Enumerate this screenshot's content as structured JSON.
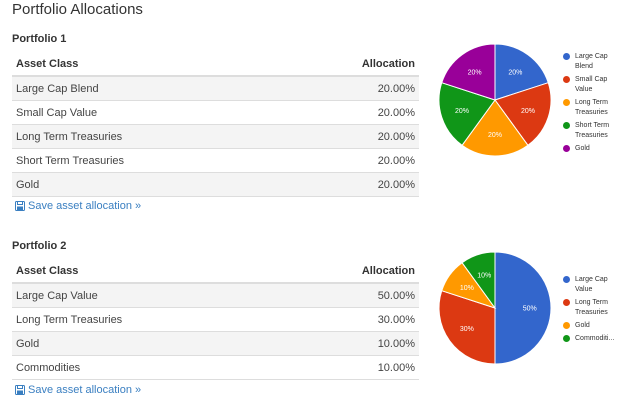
{
  "page": {
    "title": "Portfolio Allocations"
  },
  "portfolios": [
    {
      "heading": "Portfolio 1",
      "columns": {
        "asset": "Asset Class",
        "allocation": "Allocation"
      },
      "rows": [
        {
          "asset": "Large Cap Blend",
          "allocation": "20.00%"
        },
        {
          "asset": "Small Cap Value",
          "allocation": "20.00%"
        },
        {
          "asset": "Long Term Treasuries",
          "allocation": "20.00%"
        },
        {
          "asset": "Short Term Treasuries",
          "allocation": "20.00%"
        },
        {
          "asset": "Gold",
          "allocation": "20.00%"
        }
      ],
      "save_label": "Save asset allocation »"
    },
    {
      "heading": "Portfolio 2",
      "columns": {
        "asset": "Asset Class",
        "allocation": "Allocation"
      },
      "rows": [
        {
          "asset": "Large Cap Value",
          "allocation": "50.00%"
        },
        {
          "asset": "Long Term Treasuries",
          "allocation": "30.00%"
        },
        {
          "asset": "Gold",
          "allocation": "10.00%"
        },
        {
          "asset": "Commodities",
          "allocation": "10.00%"
        }
      ],
      "save_label": "Save asset allocation »"
    }
  ],
  "chart_data": [
    {
      "type": "pie",
      "slices": [
        {
          "name": "Large Cap Blend",
          "value": 20,
          "label": "20%",
          "color": "#3366cc"
        },
        {
          "name": "Small Cap Value",
          "value": 20,
          "label": "20%",
          "color": "#dc3912"
        },
        {
          "name": "Long Term Treasuries",
          "value": 20,
          "label": "20%",
          "color": "#ff9900"
        },
        {
          "name": "Short Term Treasuries",
          "value": 20,
          "label": "20%",
          "color": "#109618"
        },
        {
          "name": "Gold",
          "value": 20,
          "label": "20%",
          "color": "#990099"
        }
      ],
      "legend": [
        {
          "label": "Large Cap Blend",
          "color": "#3366cc"
        },
        {
          "label": "Small Cap Value",
          "color": "#dc3912"
        },
        {
          "label": "Long Term Treasuries",
          "color": "#ff9900"
        },
        {
          "label": "Short Term Treasuries",
          "color": "#109618"
        },
        {
          "label": "Gold",
          "color": "#990099"
        }
      ],
      "legend_position": "right"
    },
    {
      "type": "pie",
      "slices": [
        {
          "name": "Large Cap Value",
          "value": 50,
          "label": "50%",
          "color": "#3366cc"
        },
        {
          "name": "Long Term Treasuries",
          "value": 30,
          "label": "30%",
          "color": "#dc3912"
        },
        {
          "name": "Gold",
          "value": 10,
          "label": "10%",
          "color": "#ff9900"
        },
        {
          "name": "Commodities",
          "value": 10,
          "label": "10%",
          "color": "#109618"
        }
      ],
      "legend": [
        {
          "label": "Large Cap Value",
          "color": "#3366cc"
        },
        {
          "label": "Long Term Treasuries",
          "color": "#dc3912"
        },
        {
          "label": "Gold",
          "color": "#ff9900"
        },
        {
          "label": "Commoditi...",
          "color": "#109618"
        }
      ],
      "legend_position": "right"
    }
  ]
}
